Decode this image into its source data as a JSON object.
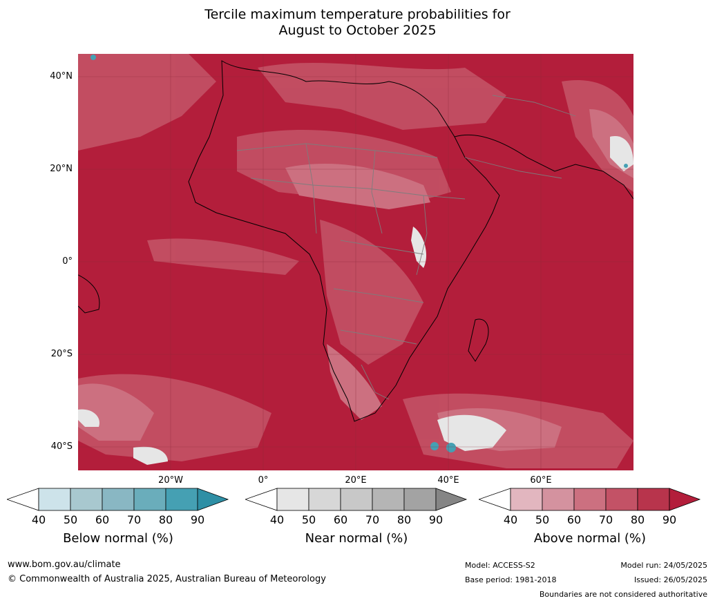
{
  "title_line1": "Tercile maximum temperature probabilities for",
  "title_line2": "August to October 2025",
  "lat_labels": [
    "40°N",
    "20°N",
    "0°",
    "20°S",
    "40°S"
  ],
  "lon_labels": [
    "20°W",
    "0°",
    "20°E",
    "40°E",
    "60°E"
  ],
  "colorbars": [
    {
      "title": "Below normal (%)",
      "ticks": [
        "40",
        "50",
        "60",
        "70",
        "80",
        "90"
      ],
      "colors": [
        "#ffffff",
        "#cde3ea",
        "#a8c8cf",
        "#89b7c3",
        "#6aadbb",
        "#45a0b3",
        "#2e8fa5"
      ]
    },
    {
      "title": "Near normal (%)",
      "ticks": [
        "40",
        "50",
        "60",
        "70",
        "80",
        "90"
      ],
      "colors": [
        "#ffffff",
        "#e6e6e6",
        "#d7d7d7",
        "#c8c8c8",
        "#b5b5b5",
        "#a3a3a3",
        "#858585"
      ]
    },
    {
      "title": "Above normal (%)",
      "ticks": [
        "40",
        "50",
        "60",
        "70",
        "80",
        "90"
      ],
      "colors": [
        "#ffffff",
        "#e2b6bf",
        "#d4929f",
        "#cc7080",
        "#c35266",
        "#b8344c",
        "#b31e3b"
      ]
    }
  ],
  "footer": {
    "website": "www.bom.gov.au/climate",
    "copyright": "© Commonwealth of Australia 2025, Australian Bureau of Meteorology",
    "model": "Model: ACCESS-S2",
    "base_period": "Base period: 1981-2018",
    "model_run": "Model run: 24/05/2025",
    "issued": "Issued: 26/05/2025",
    "disclaimer": "Boundaries are not considered authoritative"
  }
}
